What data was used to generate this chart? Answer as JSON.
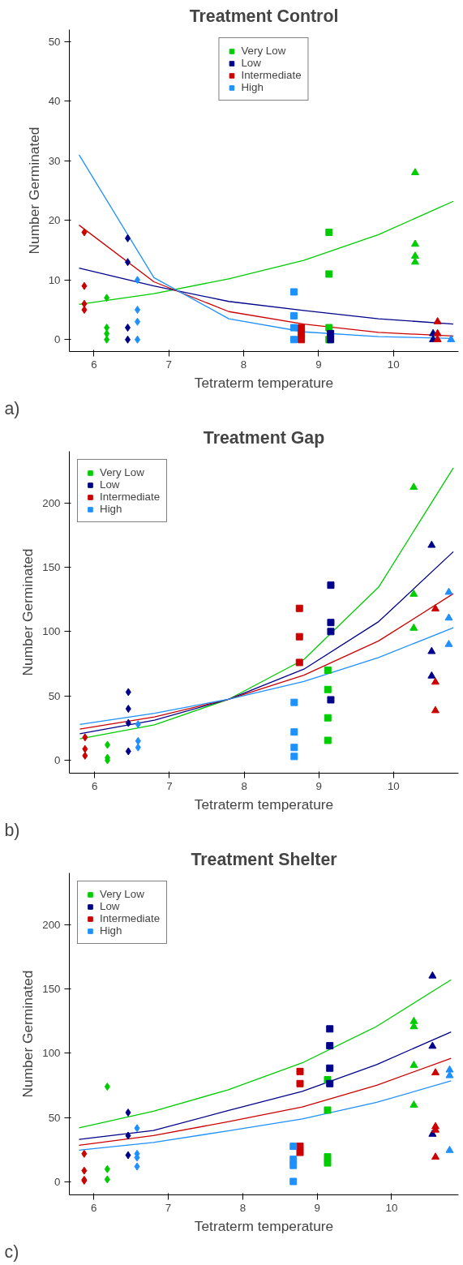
{
  "chart_data": [
    {
      "type": "scatter",
      "title": "Treatment Control",
      "xlabel": "Tetraterm temperature",
      "ylabel": "Number Germinated",
      "annotations": [
        "a)"
      ],
      "xlim": [
        5.67,
        10.87
      ],
      "ylim": [
        -2,
        52
      ],
      "xticks": [
        6,
        7,
        8,
        9,
        10
      ],
      "yticks": [
        0,
        10,
        20,
        30,
        40,
        50
      ],
      "grid": false,
      "legend": "top",
      "series": [
        {
          "type": "line",
          "color": "#00cc00",
          "x": [
            5.8,
            6.8,
            7.8,
            8.8,
            9.8,
            10.8
          ],
          "values": [
            5.9,
            7.7,
            10.2,
            13.3,
            17.6,
            23.2
          ]
        },
        {
          "type": "line",
          "color": "#00008b",
          "x": [
            5.8,
            6.8,
            7.8,
            8.8,
            9.8,
            10.8
          ],
          "values": [
            12.0,
            9.0,
            6.4,
            4.9,
            3.5,
            2.6
          ]
        },
        {
          "type": "line",
          "color": "#cc0000",
          "x": [
            5.8,
            6.8,
            7.8,
            8.8,
            9.8,
            10.8
          ],
          "values": [
            19.2,
            9.7,
            4.7,
            2.6,
            1.2,
            0.6
          ]
        },
        {
          "type": "line",
          "color": "#1e90ff",
          "x": [
            5.8,
            6.8,
            7.8,
            8.8,
            9.8,
            10.8
          ],
          "values": [
            31.0,
            10.4,
            3.5,
            1.3,
            0.5,
            0.2
          ]
        },
        {
          "name": "Very Low",
          "marker": "square",
          "color": "#00cc00",
          "x": [
            9.14,
            9.14,
            9.14,
            9.14
          ],
          "values": [
            18,
            11,
            2,
            0
          ]
        },
        {
          "name": "Low",
          "marker": "square",
          "color": "#00008b",
          "x": [
            9.16,
            9.16
          ],
          "values": [
            1,
            0
          ]
        },
        {
          "name": "Intermediate",
          "marker": "square",
          "color": "#cc0000",
          "x": [
            8.77,
            8.77,
            8.77
          ],
          "values": [
            2,
            1,
            0
          ]
        },
        {
          "name": "High",
          "marker": "square",
          "color": "#1e90ff",
          "x": [
            8.67,
            8.67,
            8.67,
            8.67
          ],
          "values": [
            8,
            4,
            2,
            0
          ]
        },
        {
          "marker": "diamond",
          "color": "#00cc00",
          "x": [
            6.17,
            6.17,
            6.17,
            6.17
          ],
          "values": [
            7,
            2,
            1,
            0
          ]
        },
        {
          "marker": "diamond",
          "color": "#00008b",
          "x": [
            6.45,
            6.45,
            6.45,
            6.45
          ],
          "values": [
            17,
            13,
            2,
            0
          ]
        },
        {
          "marker": "diamond",
          "color": "#cc0000",
          "x": [
            5.87,
            5.87,
            5.87,
            5.87
          ],
          "values": [
            18,
            9,
            6,
            5
          ]
        },
        {
          "marker": "diamond",
          "color": "#1e90ff",
          "x": [
            6.58,
            6.58,
            6.58,
            6.58
          ],
          "values": [
            10,
            5,
            3,
            0
          ]
        },
        {
          "marker": "triangle",
          "color": "#00cc00",
          "x": [
            10.29,
            10.29,
            10.29,
            10.29
          ],
          "values": [
            28,
            16,
            14,
            13
          ]
        },
        {
          "marker": "triangle",
          "color": "#00008b",
          "x": [
            10.53,
            10.53
          ],
          "values": [
            1,
            0
          ]
        },
        {
          "marker": "triangle",
          "color": "#cc0000",
          "x": [
            10.59,
            10.59,
            10.59
          ],
          "values": [
            3,
            1,
            0
          ]
        },
        {
          "marker": "triangle",
          "color": "#1e90ff",
          "x": [
            10.77
          ],
          "values": [
            0
          ]
        }
      ]
    },
    {
      "type": "scatter",
      "title": "Treatment Gap",
      "xlabel": "Tetraterm temperature",
      "ylabel": "Number Germinated",
      "annotations": [
        "b)"
      ],
      "xlim": [
        5.66,
        10.87
      ],
      "ylim": [
        -10,
        240
      ],
      "xticks": [
        6,
        7,
        8,
        9,
        10
      ],
      "yticks": [
        0,
        50,
        100,
        150,
        200
      ],
      "grid": false,
      "legend": "top left",
      "series": [
        {
          "type": "line",
          "color": "#00cc00",
          "x": [
            5.8,
            6.8,
            7.8,
            8.8,
            9.8,
            10.8
          ],
          "values": [
            16.7,
            27.5,
            47.6,
            78.3,
            134.5,
            227
          ]
        },
        {
          "type": "line",
          "color": "#00008b",
          "x": [
            5.8,
            6.8,
            7.8,
            8.8,
            9.8,
            10.8
          ],
          "values": [
            20.6,
            31.1,
            47.6,
            70.8,
            107.7,
            162
          ]
        },
        {
          "type": "line",
          "color": "#cc0000",
          "x": [
            5.8,
            6.8,
            7.8,
            8.8,
            9.8,
            10.8
          ],
          "values": [
            24.2,
            33.7,
            47.6,
            66.1,
            92.7,
            129.4
          ]
        },
        {
          "type": "line",
          "color": "#1e90ff",
          "x": [
            5.8,
            6.8,
            7.8,
            8.8,
            9.8,
            10.8
          ],
          "values": [
            27.9,
            36.5,
            47.6,
            61.2,
            79.8,
            103
          ]
        },
        {
          "name": "Very Low",
          "marker": "square",
          "color": "#00cc00",
          "x": [
            9.12,
            9.12,
            9.12,
            9.12
          ],
          "values": [
            70,
            55,
            33,
            15.5
          ]
        },
        {
          "name": "Low",
          "marker": "square",
          "color": "#00008b",
          "x": [
            9.16,
            9.16,
            9.16,
            9.16
          ],
          "values": [
            136,
            107,
            100,
            47
          ]
        },
        {
          "name": "Intermediate",
          "marker": "square",
          "color": "#cc0000",
          "x": [
            8.74,
            8.74,
            8.74
          ],
          "values": [
            118,
            96,
            76
          ]
        },
        {
          "name": "High",
          "marker": "square",
          "color": "#1e90ff",
          "x": [
            8.67,
            8.67,
            8.67,
            8.67
          ],
          "values": [
            45,
            22,
            10,
            3
          ]
        },
        {
          "marker": "diamond",
          "color": "#00cc00",
          "x": [
            6.17,
            6.17,
            6.17
          ],
          "values": [
            12,
            2,
            0
          ]
        },
        {
          "marker": "diamond",
          "color": "#00008b",
          "x": [
            6.45,
            6.45,
            6.45,
            6.45
          ],
          "values": [
            53,
            40,
            29,
            7
          ]
        },
        {
          "marker": "diamond",
          "color": "#cc0000",
          "x": [
            5.87,
            5.87,
            5.87
          ],
          "values": [
            17.8,
            8.8,
            3.6
          ]
        },
        {
          "marker": "diamond",
          "color": "#1e90ff",
          "x": [
            6.58,
            6.58,
            6.58
          ],
          "values": [
            28,
            15,
            10
          ]
        },
        {
          "marker": "triangle",
          "color": "#00cc00",
          "x": [
            10.27,
            10.27,
            10.27
          ],
          "values": [
            212,
            129,
            102.6
          ]
        },
        {
          "marker": "triangle",
          "color": "#00008b",
          "x": [
            10.51,
            10.51,
            10.51
          ],
          "values": [
            167,
            84.5,
            65.5
          ]
        },
        {
          "marker": "triangle",
          "color": "#cc0000",
          "x": [
            10.56,
            10.56,
            10.56
          ],
          "values": [
            117.6,
            60.7,
            38.6
          ]
        },
        {
          "marker": "triangle",
          "color": "#1e90ff",
          "x": [
            10.74,
            10.74,
            10.74
          ],
          "values": [
            130.5,
            110.5,
            90
          ]
        }
      ]
    },
    {
      "type": "scatter",
      "title": "Treatment Shelter",
      "xlabel": "Tetraterm temperature",
      "ylabel": "Number Germinated",
      "annotations": [
        "c)"
      ],
      "xlim": [
        5.67,
        10.9
      ],
      "ylim": [
        -10,
        240
      ],
      "xticks": [
        6,
        7,
        8,
        9,
        10
      ],
      "yticks": [
        0,
        50,
        100,
        150,
        200
      ],
      "grid": false,
      "legend": "top left",
      "series": [
        {
          "type": "line",
          "color": "#00cc00",
          "x": [
            5.8,
            6.8,
            7.8,
            8.8,
            9.8,
            10.8
          ],
          "values": [
            42,
            55,
            71.5,
            92.5,
            120.8,
            157
          ]
        },
        {
          "type": "line",
          "color": "#00008b",
          "x": [
            5.8,
            6.8,
            7.8,
            8.8,
            9.8,
            10.8
          ],
          "values": [
            33,
            40,
            55.4,
            70.4,
            91.2,
            116.5
          ]
        },
        {
          "type": "line",
          "color": "#cc0000",
          "x": [
            5.8,
            6.8,
            7.8,
            8.8,
            9.8,
            10.8
          ],
          "values": [
            28.5,
            36,
            46.8,
            58.2,
            75.1,
            96
          ]
        },
        {
          "type": "line",
          "color": "#1e90ff",
          "x": [
            5.8,
            6.8,
            7.8,
            8.8,
            9.8,
            10.8
          ],
          "values": [
            24.7,
            30.7,
            39.7,
            48.9,
            61.8,
            78.5
          ]
        },
        {
          "name": "Very Low",
          "marker": "square",
          "color": "#00cc00",
          "x": [
            9.14,
            9.14,
            9.14,
            9.14
          ],
          "values": [
            79.4,
            55.8,
            19.5,
            14.8
          ]
        },
        {
          "name": "Low",
          "marker": "square",
          "color": "#00008b",
          "x": [
            9.17,
            9.17,
            9.17,
            9.17
          ],
          "values": [
            118.9,
            105.8,
            88.4,
            76.4
          ]
        },
        {
          "name": "Intermediate",
          "marker": "square",
          "color": "#cc0000",
          "x": [
            8.77,
            8.77,
            8.77,
            8.77
          ],
          "values": [
            85.8,
            76.4,
            27.7,
            23
          ]
        },
        {
          "name": "High",
          "marker": "square",
          "color": "#1e90ff",
          "x": [
            8.68,
            8.68,
            8.68,
            8.68
          ],
          "values": [
            27.7,
            17.6,
            12.9,
            0.4
          ]
        },
        {
          "marker": "diamond",
          "color": "#00cc00",
          "x": [
            6.18,
            6.18,
            6.18
          ],
          "values": [
            74,
            10,
            2
          ]
        },
        {
          "marker": "diamond",
          "color": "#00008b",
          "x": [
            6.46,
            6.46,
            6.46
          ],
          "values": [
            53.9,
            36,
            20.8
          ]
        },
        {
          "marker": "diamond",
          "color": "#cc0000",
          "x": [
            5.87,
            5.87,
            5.87,
            5.87
          ],
          "values": [
            21.9,
            8.8,
            1.7,
            1
          ]
        },
        {
          "marker": "diamond",
          "color": "#1e90ff",
          "x": [
            6.58,
            6.58,
            6.58,
            6.58
          ],
          "values": [
            41.8,
            21.9,
            19,
            12
          ]
        },
        {
          "marker": "triangle",
          "color": "#00cc00",
          "x": [
            10.3,
            10.3,
            10.3,
            10.3
          ],
          "values": [
            124.7,
            120.6,
            90.6,
            59.7
          ]
        },
        {
          "marker": "triangle",
          "color": "#00008b",
          "x": [
            10.55,
            10.55,
            10.55
          ],
          "values": [
            160,
            105.4,
            37.1
          ]
        },
        {
          "marker": "triangle",
          "color": "#cc0000",
          "x": [
            10.59,
            10.59,
            10.59,
            10.59
          ],
          "values": [
            84.8,
            43,
            40.3,
            19.3
          ]
        },
        {
          "marker": "triangle",
          "color": "#1e90ff",
          "x": [
            10.78,
            10.78,
            10.78
          ],
          "values": [
            87,
            82.6,
            24.5
          ]
        }
      ]
    }
  ]
}
